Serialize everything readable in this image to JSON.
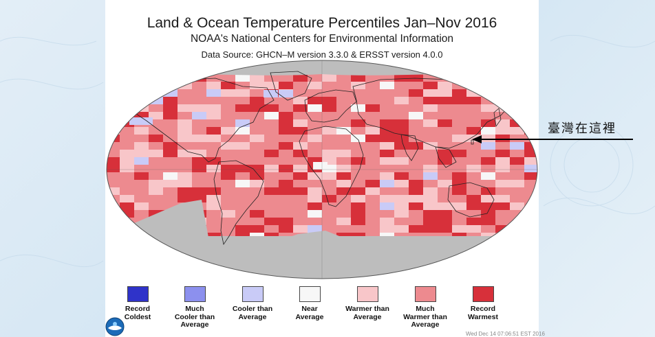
{
  "title": "Land & Ocean Temperature Percentiles Jan–Nov 2016",
  "subtitle": "NOAA's National Centers for Environmental Information",
  "source": "Data Source: GHCN–M version 3.3.0 & ERSST version 4.0.0",
  "annotation": "臺灣在這裡",
  "timestamp": "Wed Dec 14 07:06:51 EST 2016",
  "legend": [
    {
      "label": "Record\nColdest",
      "color": "#2f33c9"
    },
    {
      "label": "Much\nCooler than\nAverage",
      "color": "#8c90ee"
    },
    {
      "label": "Cooler than\nAverage",
      "color": "#c9cbf7"
    },
    {
      "label": "Near\nAverage",
      "color": "#f7f7f7"
    },
    {
      "label": "Warmer than\nAverage",
      "color": "#f8c6c9"
    },
    {
      "label": "Much\nWarmer than\nAverage",
      "color": "#ed8a8f"
    },
    {
      "label": "Record\nWarmest",
      "color": "#d7303a"
    }
  ],
  "colors": {
    "no_data": "#bdbdbd",
    "ocean_default": "#ed8a8f",
    "land_outline": "#222222",
    "graticule": "#555555"
  }
}
